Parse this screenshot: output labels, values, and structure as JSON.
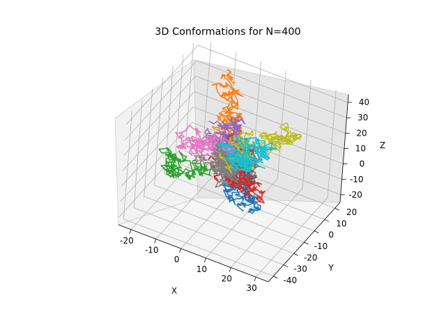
{
  "chart_data": {
    "type": "3d-line",
    "title": "3D Conformations for N=400",
    "xlabel": "X",
    "ylabel": "Y",
    "zlabel": "Z",
    "xlim": [
      -25,
      35
    ],
    "ylim": [
      -45,
      25
    ],
    "zlim": [
      -25,
      45
    ],
    "x_ticks": [
      -20,
      -10,
      0,
      10,
      20,
      30
    ],
    "y_ticks": [
      -40,
      -30,
      -20,
      -10,
      0,
      10,
      20
    ],
    "z_ticks": [
      -20,
      -10,
      0,
      10,
      20,
      30,
      40
    ],
    "grid": true,
    "steps_per_walk": 400,
    "series": [
      {
        "color": "#1f77b4",
        "end": [
          12,
          -8,
          -18
        ]
      },
      {
        "color": "#ff7f0e",
        "end": [
          -6,
          8,
          40
        ]
      },
      {
        "color": "#2ca02c",
        "end": [
          -22,
          -14,
          -10
        ]
      },
      {
        "color": "#d62728",
        "end": [
          14,
          -10,
          -6
        ]
      },
      {
        "color": "#9467bd",
        "end": [
          -2,
          4,
          16
        ]
      },
      {
        "color": "#8c564b",
        "end": [
          10,
          0,
          8
        ]
      },
      {
        "color": "#e377c2",
        "end": [
          -16,
          -4,
          4
        ]
      },
      {
        "color": "#7f7f7f",
        "end": [
          4,
          -10,
          -4
        ]
      },
      {
        "color": "#bcbd22",
        "end": [
          24,
          10,
          22
        ]
      },
      {
        "color": "#17becf",
        "end": [
          10,
          6,
          12
        ]
      }
    ]
  }
}
